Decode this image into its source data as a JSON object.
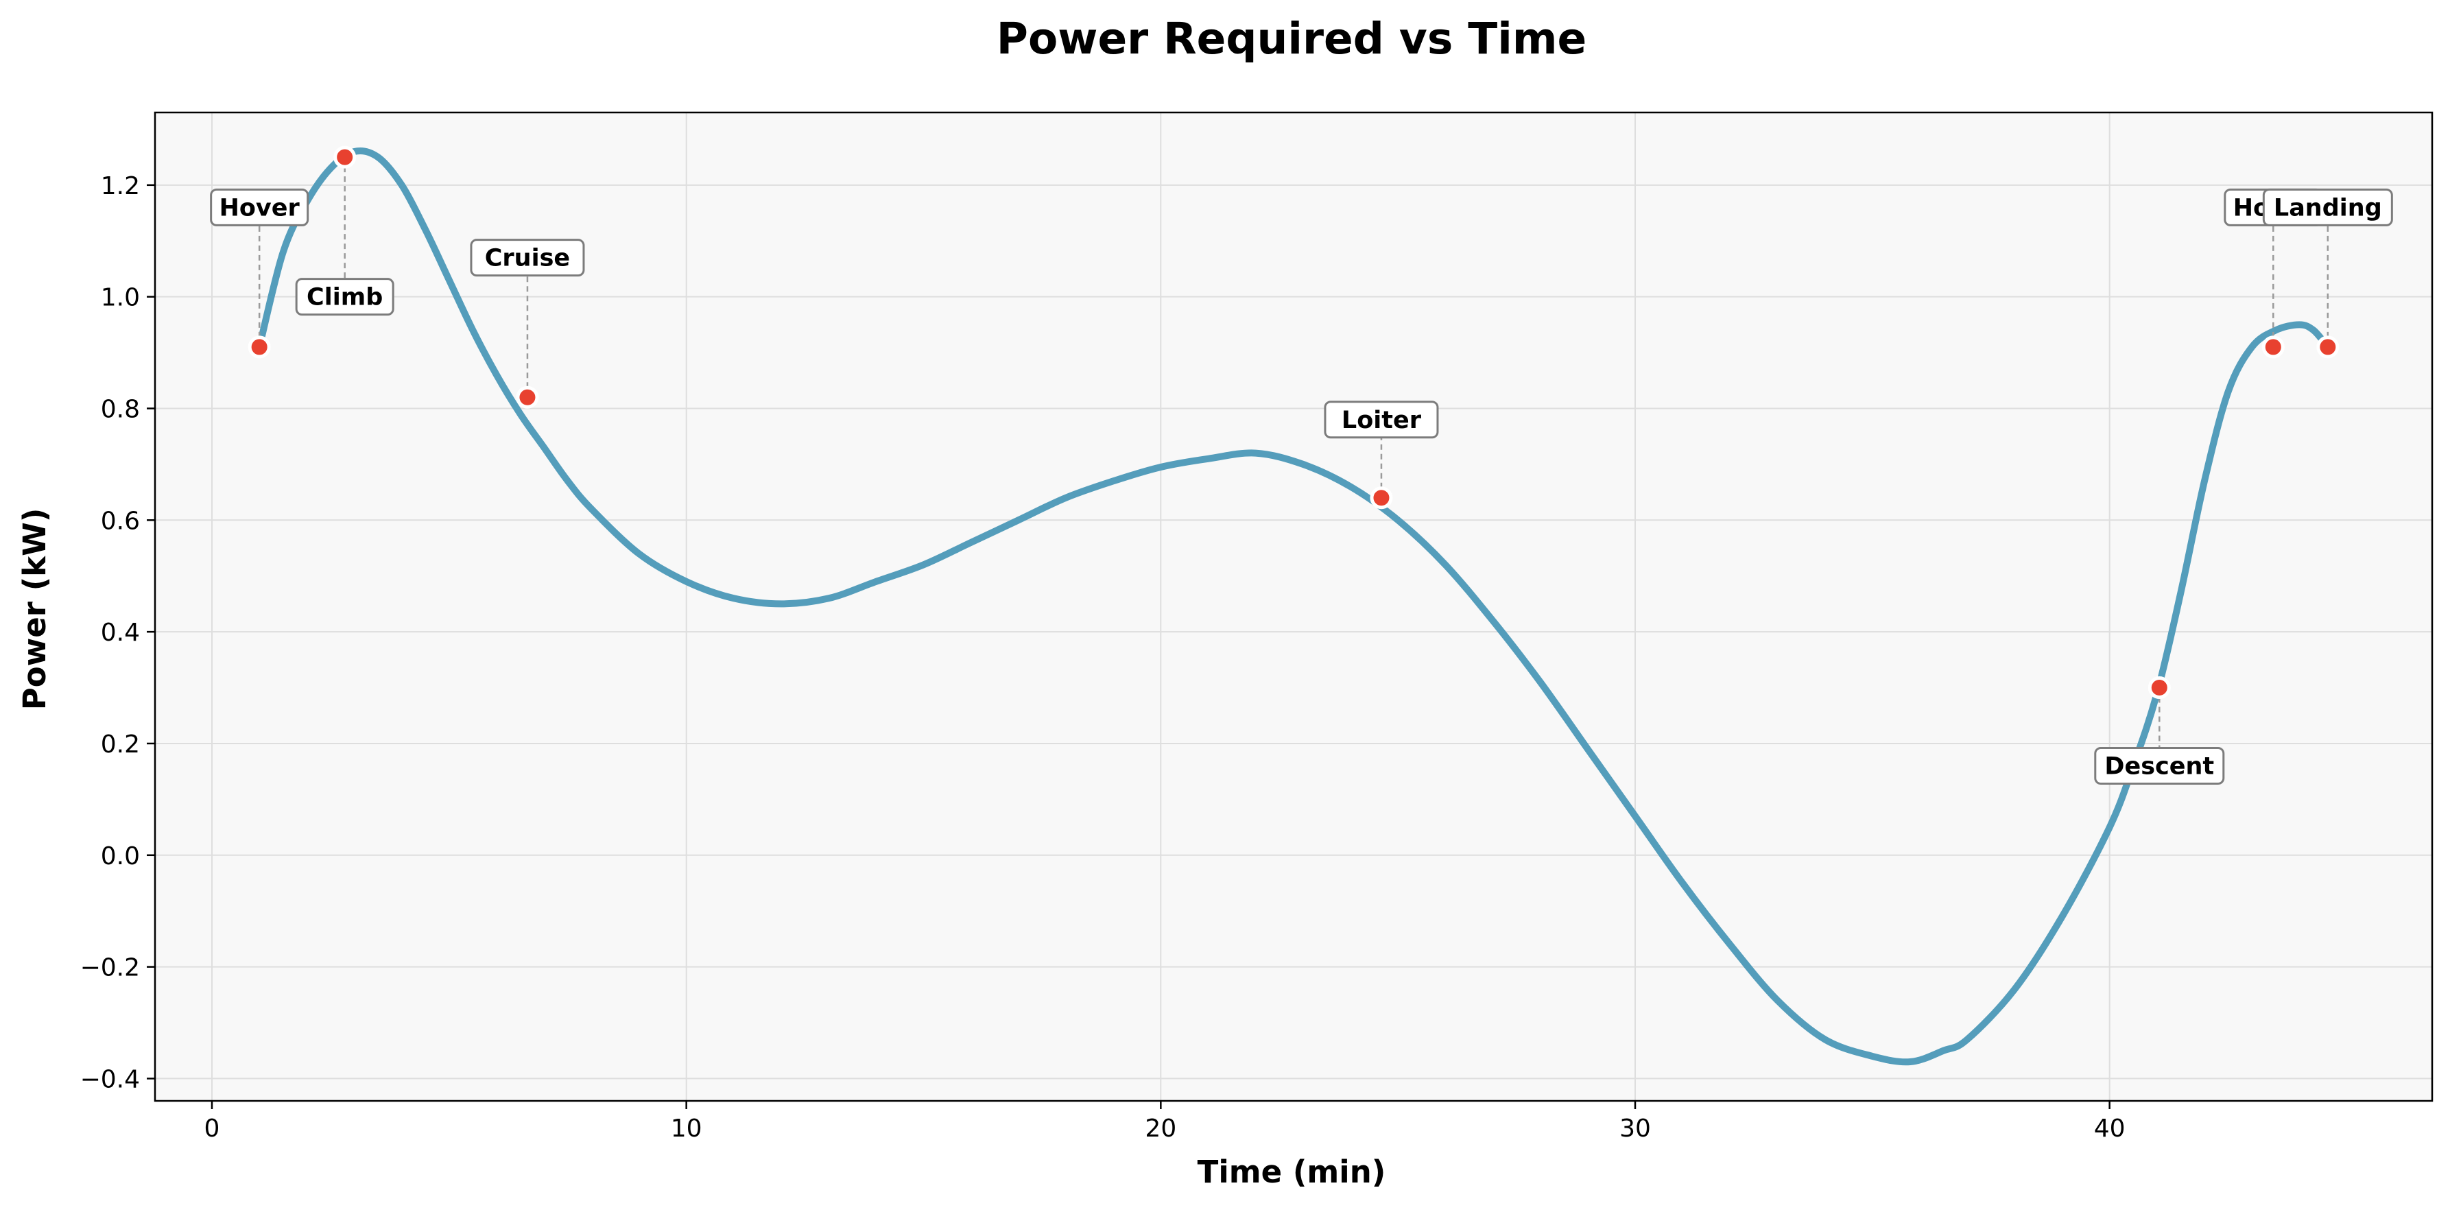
{
  "chart_data": {
    "type": "line",
    "title": "Power Required vs Time",
    "xlabel": "Time (min)",
    "ylabel": "Power (kW)",
    "xlim": [
      -1.2,
      46.8
    ],
    "ylim": [
      -0.44,
      1.33
    ],
    "xticks": [
      0,
      10,
      20,
      30,
      40
    ],
    "xtick_labels": [
      "0",
      "10",
      "20",
      "30",
      "40"
    ],
    "yticks": [
      -0.4,
      -0.2,
      0.0,
      0.2,
      0.4,
      0.6,
      0.8,
      1.0,
      1.2
    ],
    "ytick_labels": [
      "−0.4",
      "−0.2",
      "0.0",
      "0.2",
      "0.4",
      "0.6",
      "0.8",
      "1.0",
      "1.2"
    ],
    "grid": true,
    "line_color": "#549dbb",
    "marker_color": "#e8412f",
    "plot_background": "#f8f8f8",
    "series": [
      {
        "x": [
          1.0,
          1.5,
          2.0,
          2.5,
          3.0,
          3.5,
          4.0,
          4.5,
          5.0,
          5.5,
          6.0,
          6.5,
          7.0,
          7.5,
          8.0,
          9.0,
          10.0,
          11.0,
          12.0,
          13.0,
          14.0,
          15.0,
          16.0,
          17.0,
          18.0,
          19.0,
          20.0,
          21.0,
          22.0,
          23.0,
          24.0,
          25.0,
          26.0,
          27.0,
          28.0,
          29.0,
          30.0,
          31.0,
          32.0,
          33.0,
          34.0,
          35.0,
          35.8,
          36.5,
          37.0,
          38.0,
          39.0,
          40.0,
          40.5,
          41.0,
          41.5,
          42.0,
          42.5,
          43.0,
          43.5,
          44.0,
          44.3,
          44.6
        ],
        "y": [
          0.91,
          1.08,
          1.17,
          1.23,
          1.26,
          1.25,
          1.2,
          1.12,
          1.03,
          0.94,
          0.86,
          0.79,
          0.73,
          0.67,
          0.62,
          0.54,
          0.49,
          0.46,
          0.45,
          0.46,
          0.49,
          0.52,
          0.56,
          0.6,
          0.64,
          0.67,
          0.695,
          0.71,
          0.72,
          0.7,
          0.66,
          0.6,
          0.52,
          0.42,
          0.31,
          0.19,
          0.07,
          -0.05,
          -0.16,
          -0.26,
          -0.33,
          -0.36,
          -0.37,
          -0.35,
          -0.33,
          -0.24,
          -0.11,
          0.05,
          0.16,
          0.29,
          0.47,
          0.67,
          0.83,
          0.91,
          0.94,
          0.95,
          0.94,
          0.91
        ]
      }
    ],
    "phases": [
      {
        "label": "Hover",
        "x": 1.0,
        "y": 0.91,
        "label_y": 1.16
      },
      {
        "label": "Climb",
        "x": 2.8,
        "y": 1.25,
        "label_y": 1.0
      },
      {
        "label": "Cruise",
        "x": 6.65,
        "y": 0.82,
        "label_y": 1.07
      },
      {
        "label": "Loiter",
        "x": 24.65,
        "y": 0.64,
        "label_y": 0.78
      },
      {
        "label": "Descent",
        "x": 41.05,
        "y": 0.3,
        "label_y": 0.16
      },
      {
        "label": "Hover",
        "x": 43.45,
        "y": 0.91,
        "label_y": 1.16
      },
      {
        "label": "Landing",
        "x": 44.6,
        "y": 0.91,
        "label_y": 1.16
      }
    ]
  }
}
